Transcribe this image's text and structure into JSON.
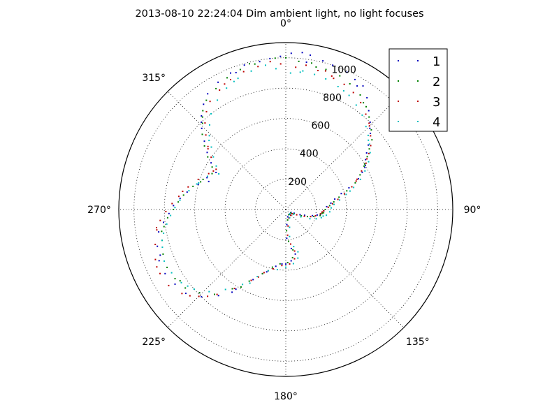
{
  "chart_data": {
    "type": "scatter",
    "title": "2013-08-10 22:24:04 Dim ambient light, no light focuses",
    "projection": "polar",
    "theta_zero": "top",
    "theta_direction": "clockwise",
    "rlim": [
      0,
      1100
    ],
    "r_ticks": [
      "200",
      "400",
      "600",
      "800",
      "1000"
    ],
    "theta_ticks": [
      {
        "angle": 0,
        "label": "0°"
      },
      {
        "angle": 90,
        "label": "90°"
      },
      {
        "angle": 135,
        "label": "135°"
      },
      {
        "angle": 180,
        "label": "180°"
      },
      {
        "angle": 225,
        "label": "225°"
      },
      {
        "angle": 270,
        "label": "270°"
      },
      {
        "angle": 315,
        "label": "315°"
      }
    ],
    "grid": true,
    "legend_position": "top-right",
    "series": [
      {
        "name": "1",
        "color": "#0000bf",
        "points": [
          [
            358,
            1010
          ],
          [
            2,
            1030
          ],
          [
            6,
            1040
          ],
          [
            9,
            1030
          ],
          [
            14,
            1010
          ],
          [
            18,
            1000
          ],
          [
            24,
            990
          ],
          [
            28,
            970
          ],
          [
            32,
            960
          ],
          [
            36,
            910
          ],
          [
            40,
            850
          ],
          [
            44,
            800
          ],
          [
            48,
            750
          ],
          [
            52,
            690
          ],
          [
            55,
            650
          ],
          [
            58,
            620
          ],
          [
            61,
            600
          ],
          [
            64,
            560
          ],
          [
            67,
            520
          ],
          [
            71,
            440
          ],
          [
            74,
            380
          ],
          [
            78,
            330
          ],
          [
            82,
            300
          ],
          [
            86,
            270
          ],
          [
            92,
            250
          ],
          [
            98,
            230
          ],
          [
            103,
            180
          ],
          [
            107,
            130
          ],
          [
            110,
            100
          ],
          [
            114,
            60
          ],
          [
            120,
            40
          ],
          [
            140,
            40
          ],
          [
            165,
            50
          ],
          [
            176,
            100
          ],
          [
            178,
            190
          ],
          [
            172,
            260
          ],
          [
            168,
            300
          ],
          [
            174,
            340
          ],
          [
            180,
            360
          ],
          [
            184,
            360
          ],
          [
            190,
            380
          ],
          [
            197,
            430
          ],
          [
            205,
            510
          ],
          [
            212,
            620
          ],
          [
            218,
            720
          ],
          [
            224,
            800
          ],
          [
            230,
            860
          ],
          [
            236,
            880
          ],
          [
            242,
            900
          ],
          [
            248,
            900
          ],
          [
            254,
            880
          ],
          [
            260,
            850
          ],
          [
            264,
            810
          ],
          [
            268,
            770
          ],
          [
            272,
            740
          ],
          [
            276,
            700
          ],
          [
            280,
            660
          ],
          [
            286,
            600
          ],
          [
            292,
            560
          ],
          [
            298,
            520
          ],
          [
            302,
            580
          ],
          [
            306,
            640
          ],
          [
            310,
            700
          ],
          [
            314,
            770
          ],
          [
            318,
            830
          ],
          [
            322,
            880
          ],
          [
            326,
            920
          ],
          [
            332,
            950
          ],
          [
            338,
            970
          ],
          [
            344,
            990
          ],
          [
            350,
            990
          ],
          [
            354,
            1000
          ],
          [
            8,
            980
          ],
          [
            30,
            940
          ],
          [
            62,
            590
          ],
          [
            200,
            450
          ],
          [
            226,
            790
          ],
          [
            250,
            880
          ],
          [
            290,
            540
          ],
          [
            316,
            800
          ],
          [
            340,
            960
          ],
          [
            46,
            770
          ],
          [
            100,
            210
          ],
          [
            213,
            650
          ]
        ]
      },
      {
        "name": "2",
        "color": "#008000",
        "points": [
          [
            356,
            1000
          ],
          [
            0,
            1000
          ],
          [
            5,
            980
          ],
          [
            10,
            980
          ],
          [
            16,
            960
          ],
          [
            22,
            950
          ],
          [
            27,
            930
          ],
          [
            33,
            900
          ],
          [
            38,
            860
          ],
          [
            42,
            820
          ],
          [
            47,
            770
          ],
          [
            51,
            730
          ],
          [
            54,
            680
          ],
          [
            57,
            640
          ],
          [
            61,
            590
          ],
          [
            65,
            540
          ],
          [
            69,
            490
          ],
          [
            73,
            420
          ],
          [
            77,
            360
          ],
          [
            81,
            320
          ],
          [
            85,
            290
          ],
          [
            90,
            260
          ],
          [
            95,
            250
          ],
          [
            100,
            230
          ],
          [
            104,
            190
          ],
          [
            108,
            150
          ],
          [
            112,
            110
          ],
          [
            118,
            60
          ],
          [
            126,
            40
          ],
          [
            150,
            40
          ],
          [
            170,
            70
          ],
          [
            178,
            140
          ],
          [
            175,
            210
          ],
          [
            170,
            270
          ],
          [
            172,
            320
          ],
          [
            178,
            350
          ],
          [
            186,
            360
          ],
          [
            193,
            390
          ],
          [
            200,
            450
          ],
          [
            207,
            530
          ],
          [
            214,
            630
          ],
          [
            220,
            730
          ],
          [
            226,
            790
          ],
          [
            232,
            840
          ],
          [
            238,
            860
          ],
          [
            244,
            870
          ],
          [
            250,
            860
          ],
          [
            256,
            840
          ],
          [
            262,
            810
          ],
          [
            266,
            780
          ],
          [
            270,
            740
          ],
          [
            274,
            710
          ],
          [
            278,
            680
          ],
          [
            284,
            630
          ],
          [
            290,
            580
          ],
          [
            296,
            540
          ],
          [
            300,
            560
          ],
          [
            304,
            620
          ],
          [
            308,
            680
          ],
          [
            312,
            740
          ],
          [
            316,
            790
          ],
          [
            320,
            850
          ],
          [
            324,
            890
          ],
          [
            330,
            920
          ],
          [
            336,
            950
          ],
          [
            342,
            970
          ],
          [
            348,
            980
          ],
          [
            12,
            960
          ],
          [
            36,
            870
          ],
          [
            60,
            600
          ],
          [
            96,
            240
          ],
          [
            210,
            590
          ],
          [
            236,
            840
          ],
          [
            260,
            830
          ],
          [
            288,
            590
          ],
          [
            318,
            820
          ],
          [
            346,
            990
          ]
        ]
      },
      {
        "name": "3",
        "color": "#bf0000",
        "points": [
          [
            354,
            980
          ],
          [
            358,
            960
          ],
          [
            4,
            940
          ],
          [
            8,
            960
          ],
          [
            13,
            940
          ],
          [
            19,
            930
          ],
          [
            25,
            910
          ],
          [
            30,
            890
          ],
          [
            35,
            860
          ],
          [
            40,
            820
          ],
          [
            45,
            780
          ],
          [
            49,
            740
          ],
          [
            53,
            700
          ],
          [
            56,
            660
          ],
          [
            60,
            610
          ],
          [
            63,
            560
          ],
          [
            67,
            510
          ],
          [
            71,
            460
          ],
          [
            75,
            400
          ],
          [
            79,
            350
          ],
          [
            83,
            310
          ],
          [
            87,
            280
          ],
          [
            92,
            250
          ],
          [
            97,
            230
          ],
          [
            102,
            200
          ],
          [
            106,
            170
          ],
          [
            110,
            130
          ],
          [
            116,
            80
          ],
          [
            124,
            50
          ],
          [
            140,
            50
          ],
          [
            160,
            60
          ],
          [
            172,
            110
          ],
          [
            176,
            170
          ],
          [
            172,
            230
          ],
          [
            168,
            280
          ],
          [
            170,
            330
          ],
          [
            176,
            360
          ],
          [
            184,
            370
          ],
          [
            192,
            400
          ],
          [
            199,
            440
          ],
          [
            206,
            520
          ],
          [
            213,
            620
          ],
          [
            219,
            720
          ],
          [
            225,
            810
          ],
          [
            231,
            880
          ],
          [
            237,
            920
          ],
          [
            243,
            930
          ],
          [
            249,
            920
          ],
          [
            255,
            890
          ],
          [
            261,
            860
          ],
          [
            265,
            830
          ],
          [
            269,
            790
          ],
          [
            273,
            750
          ],
          [
            277,
            710
          ],
          [
            283,
            660
          ],
          [
            289,
            610
          ],
          [
            295,
            560
          ],
          [
            300,
            530
          ],
          [
            305,
            600
          ],
          [
            309,
            660
          ],
          [
            313,
            720
          ],
          [
            317,
            780
          ],
          [
            321,
            830
          ],
          [
            325,
            870
          ],
          [
            331,
            900
          ],
          [
            337,
            930
          ],
          [
            343,
            950
          ],
          [
            349,
            960
          ],
          [
            20,
            920
          ],
          [
            44,
            790
          ],
          [
            68,
            500
          ],
          [
            94,
            240
          ],
          [
            202,
            480
          ],
          [
            228,
            850
          ],
          [
            246,
            930
          ],
          [
            280,
            690
          ],
          [
            308,
            650
          ],
          [
            334,
            920
          ],
          [
            16,
            950
          ],
          [
            58,
            630
          ],
          [
            196,
            420
          ],
          [
            222,
            770
          ],
          [
            262,
            860
          ],
          [
            298,
            540
          ]
        ]
      },
      {
        "name": "4",
        "color": "#00bfbf",
        "points": [
          [
            352,
            960
          ],
          [
            356,
            930
          ],
          [
            2,
            900
          ],
          [
            7,
            920
          ],
          [
            12,
            910
          ],
          [
            17,
            900
          ],
          [
            23,
            880
          ],
          [
            29,
            860
          ],
          [
            34,
            830
          ],
          [
            39,
            800
          ],
          [
            44,
            760
          ],
          [
            48,
            730
          ],
          [
            52,
            700
          ],
          [
            56,
            670
          ],
          [
            60,
            630
          ],
          [
            64,
            580
          ],
          [
            68,
            530
          ],
          [
            72,
            470
          ],
          [
            76,
            410
          ],
          [
            80,
            360
          ],
          [
            84,
            320
          ],
          [
            88,
            300
          ],
          [
            93,
            290
          ],
          [
            98,
            270
          ],
          [
            103,
            240
          ],
          [
            107,
            210
          ],
          [
            111,
            170
          ],
          [
            116,
            110
          ],
          [
            122,
            60
          ],
          [
            135,
            40
          ],
          [
            155,
            60
          ],
          [
            168,
            120
          ],
          [
            172,
            180
          ],
          [
            168,
            250
          ],
          [
            164,
            290
          ],
          [
            166,
            330
          ],
          [
            172,
            360
          ],
          [
            180,
            380
          ],
          [
            188,
            400
          ],
          [
            196,
            420
          ],
          [
            203,
            480
          ],
          [
            210,
            570
          ],
          [
            217,
            660
          ],
          [
            223,
            740
          ],
          [
            229,
            800
          ],
          [
            235,
            840
          ],
          [
            241,
            860
          ],
          [
            247,
            870
          ],
          [
            253,
            850
          ],
          [
            259,
            820
          ],
          [
            263,
            790
          ],
          [
            267,
            760
          ],
          [
            271,
            730
          ],
          [
            275,
            700
          ],
          [
            281,
            650
          ],
          [
            287,
            600
          ],
          [
            293,
            560
          ],
          [
            298,
            500
          ],
          [
            302,
            540
          ],
          [
            306,
            590
          ],
          [
            310,
            640
          ],
          [
            314,
            700
          ],
          [
            318,
            750
          ],
          [
            322,
            800
          ],
          [
            328,
            850
          ],
          [
            334,
            890
          ],
          [
            340,
            920
          ],
          [
            346,
            940
          ],
          [
            6,
            910
          ],
          [
            26,
            870
          ],
          [
            50,
            710
          ],
          [
            74,
            440
          ],
          [
            100,
            250
          ],
          [
            206,
            540
          ],
          [
            232,
            820
          ],
          [
            256,
            840
          ],
          [
            286,
            610
          ],
          [
            312,
            680
          ],
          [
            338,
            910
          ]
        ]
      }
    ]
  }
}
